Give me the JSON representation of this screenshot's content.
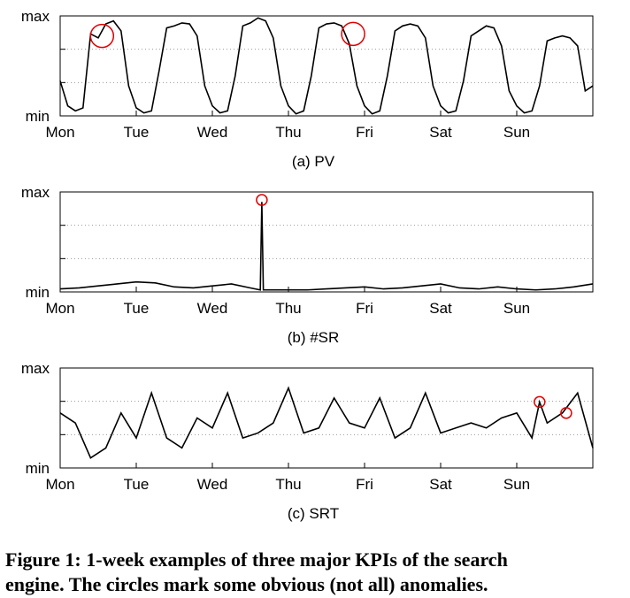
{
  "chart_data": [
    {
      "type": "line",
      "subtitle": "(a) PV",
      "color": "#000000",
      "anomaly_color": "#e00000",
      "xlim": [
        0,
        7
      ],
      "xticks": [
        {
          "value": 0,
          "label": "Mon"
        },
        {
          "value": 1,
          "label": "Tue"
        },
        {
          "value": 2,
          "label": "Wed"
        },
        {
          "value": 3,
          "label": "Thu"
        },
        {
          "value": 4,
          "label": "Fri"
        },
        {
          "value": 5,
          "label": "Sat"
        },
        {
          "value": 6,
          "label": "Sun"
        }
      ],
      "ylim": [
        0,
        1
      ],
      "yticks": [
        {
          "value": 0,
          "label": "min"
        },
        {
          "value": 1,
          "label": "max"
        }
      ],
      "x": [
        0,
        0.1,
        0.2,
        0.3,
        0.4,
        0.5,
        0.6,
        0.7,
        0.8,
        0.9,
        1,
        1.1,
        1.2,
        1.3,
        1.4,
        1.5,
        1.6,
        1.7,
        1.8,
        1.9,
        2,
        2.1,
        2.2,
        2.3,
        2.4,
        2.5,
        2.6,
        2.7,
        2.8,
        2.9,
        3,
        3.1,
        3.2,
        3.3,
        3.4,
        3.5,
        3.6,
        3.7,
        3.8,
        3.9,
        4,
        4.1,
        4.2,
        4.3,
        4.4,
        4.5,
        4.6,
        4.7,
        4.8,
        4.9,
        5,
        5.1,
        5.2,
        5.3,
        5.4,
        5.5,
        5.6,
        5.7,
        5.8,
        5.9,
        6,
        6.1,
        6.2,
        6.3,
        6.4,
        6.5,
        6.6,
        6.7,
        6.8,
        6.9,
        7
      ],
      "values": [
        0.35,
        0.1,
        0.05,
        0.08,
        0.82,
        0.78,
        0.92,
        0.95,
        0.85,
        0.3,
        0.08,
        0.03,
        0.05,
        0.45,
        0.88,
        0.9,
        0.93,
        0.92,
        0.8,
        0.3,
        0.1,
        0.03,
        0.05,
        0.4,
        0.9,
        0.93,
        0.98,
        0.95,
        0.78,
        0.3,
        0.1,
        0.02,
        0.05,
        0.4,
        0.88,
        0.92,
        0.93,
        0.9,
        0.72,
        0.3,
        0.1,
        0.02,
        0.05,
        0.4,
        0.85,
        0.9,
        0.92,
        0.9,
        0.78,
        0.3,
        0.1,
        0.03,
        0.05,
        0.35,
        0.8,
        0.85,
        0.9,
        0.88,
        0.7,
        0.25,
        0.1,
        0.03,
        0.05,
        0.3,
        0.75,
        0.78,
        0.8,
        0.78,
        0.7,
        0.25,
        0.3
      ],
      "anomalies": {
        "x": [
          0.55,
          3.85
        ],
        "y": [
          0.8,
          0.82
        ]
      }
    },
    {
      "type": "line",
      "subtitle": "(b) #SR",
      "color": "#000000",
      "anomaly_color": "#e00000",
      "xlim": [
        0,
        7
      ],
      "xticks": [
        {
          "value": 0,
          "label": "Mon"
        },
        {
          "value": 1,
          "label": "Tue"
        },
        {
          "value": 2,
          "label": "Wed"
        },
        {
          "value": 3,
          "label": "Thu"
        },
        {
          "value": 4,
          "label": "Fri"
        },
        {
          "value": 5,
          "label": "Sat"
        },
        {
          "value": 6,
          "label": "Sun"
        }
      ],
      "ylim": [
        0,
        1
      ],
      "yticks": [
        {
          "value": 0,
          "label": "min"
        },
        {
          "value": 1,
          "label": "max"
        }
      ],
      "x": [
        0,
        0.25,
        0.5,
        0.75,
        1,
        1.25,
        1.5,
        1.75,
        2,
        2.25,
        2.5,
        2.63,
        2.65,
        2.67,
        2.75,
        3,
        3.25,
        3.5,
        3.75,
        4,
        4.25,
        4.5,
        4.75,
        5,
        5.25,
        5.5,
        5.75,
        6,
        6.25,
        6.5,
        6.75,
        7
      ],
      "values": [
        0.03,
        0.04,
        0.06,
        0.08,
        0.1,
        0.09,
        0.05,
        0.04,
        0.06,
        0.08,
        0.04,
        0.02,
        0.9,
        0.02,
        0.02,
        0.02,
        0.02,
        0.03,
        0.04,
        0.05,
        0.03,
        0.04,
        0.06,
        0.08,
        0.04,
        0.03,
        0.05,
        0.03,
        0.02,
        0.03,
        0.05,
        0.08
      ],
      "anomalies": {
        "x": [
          2.65
        ],
        "y": [
          0.92
        ]
      }
    },
    {
      "type": "line",
      "subtitle": "(c) SRT",
      "color": "#000000",
      "anomaly_color": "#e00000",
      "xlim": [
        0,
        7
      ],
      "xticks": [
        {
          "value": 0,
          "label": "Mon"
        },
        {
          "value": 1,
          "label": "Tue"
        },
        {
          "value": 2,
          "label": "Wed"
        },
        {
          "value": 3,
          "label": "Thu"
        },
        {
          "value": 4,
          "label": "Fri"
        },
        {
          "value": 5,
          "label": "Sat"
        },
        {
          "value": 6,
          "label": "Sun"
        }
      ],
      "ylim": [
        0,
        1
      ],
      "yticks": [
        {
          "value": 0,
          "label": "min"
        },
        {
          "value": 1,
          "label": "max"
        }
      ],
      "x": [
        0,
        0.2,
        0.4,
        0.6,
        0.8,
        1,
        1.2,
        1.4,
        1.6,
        1.8,
        2,
        2.2,
        2.4,
        2.6,
        2.8,
        3,
        3.2,
        3.4,
        3.6,
        3.8,
        4,
        4.2,
        4.4,
        4.6,
        4.8,
        5,
        5.2,
        5.4,
        5.6,
        5.8,
        6,
        6.2,
        6.3,
        6.4,
        6.6,
        6.8,
        7
      ],
      "values": [
        0.55,
        0.45,
        0.1,
        0.2,
        0.55,
        0.3,
        0.75,
        0.3,
        0.2,
        0.5,
        0.4,
        0.75,
        0.3,
        0.35,
        0.45,
        0.8,
        0.35,
        0.4,
        0.7,
        0.45,
        0.4,
        0.7,
        0.3,
        0.4,
        0.75,
        0.35,
        0.4,
        0.45,
        0.4,
        0.5,
        0.55,
        0.3,
        0.66,
        0.45,
        0.55,
        0.75,
        0.2
      ],
      "anomalies": {
        "x": [
          6.3,
          6.65
        ],
        "y": [
          0.66,
          0.55
        ]
      }
    }
  ],
  "caption": [
    "Figure 1:  1-week examples of three major KPIs of the search",
    "engine. The circles mark some obvious (not all) anomalies."
  ]
}
